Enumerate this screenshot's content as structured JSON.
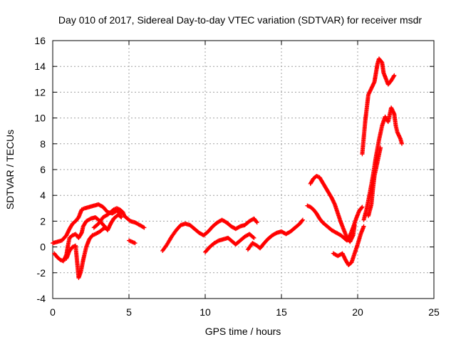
{
  "chart_data": {
    "type": "scatter",
    "title": "Day 010 of 2017, Sidereal Day-to-day VTEC variation (SDTVAR) for receiver msdr",
    "xlabel": "GPS time / hours",
    "ylabel": "SDTVAR / TECUs",
    "xlim": [
      0,
      25
    ],
    "ylim": [
      -4,
      16
    ],
    "xticks": [
      "0",
      "5",
      "10",
      "15",
      "20",
      "25"
    ],
    "yticks": [
      "-4",
      "-2",
      "0",
      "2",
      "4",
      "6",
      "8",
      "10",
      "12",
      "14",
      "16"
    ],
    "grid": true,
    "marker": "+",
    "color": "#ff0000",
    "series": [
      {
        "points": [
          [
            0.0,
            0.3
          ],
          [
            0.3,
            0.4
          ],
          [
            0.6,
            0.5
          ],
          [
            0.9,
            0.9
          ],
          [
            1.1,
            1.4
          ],
          [
            1.3,
            1.8
          ],
          [
            1.5,
            2.0
          ],
          [
            1.7,
            2.3
          ],
          [
            1.8,
            2.6
          ],
          [
            1.9,
            2.9
          ],
          [
            2.1,
            3.0
          ],
          [
            2.4,
            3.1
          ],
          [
            2.7,
            3.2
          ],
          [
            3.0,
            3.3
          ],
          [
            3.3,
            3.1
          ],
          [
            3.6,
            2.7
          ],
          [
            3.9,
            2.6
          ],
          [
            4.2,
            2.8
          ],
          [
            4.5,
            2.6
          ]
        ]
      },
      {
        "points": [
          [
            0.1,
            -0.5
          ],
          [
            0.3,
            -0.8
          ],
          [
            0.5,
            -1.0
          ],
          [
            0.7,
            -1.1
          ],
          [
            0.9,
            -0.6
          ],
          [
            1.0,
            0.1
          ],
          [
            1.1,
            0.7
          ],
          [
            1.3,
            0.9
          ],
          [
            1.5,
            1.0
          ],
          [
            1.7,
            0.7
          ],
          [
            1.9,
            1.1
          ],
          [
            2.0,
            1.6
          ],
          [
            2.2,
            2.0
          ],
          [
            2.5,
            2.2
          ],
          [
            2.8,
            2.3
          ],
          [
            3.1,
            2.0
          ],
          [
            3.4,
            1.6
          ],
          [
            3.6,
            1.3
          ],
          [
            3.8,
            1.8
          ],
          [
            4.0,
            2.2
          ],
          [
            4.3,
            2.5
          ],
          [
            4.5,
            2.3
          ]
        ]
      },
      {
        "points": [
          [
            0.9,
            -0.9
          ],
          [
            1.1,
            -0.3
          ],
          [
            1.3,
            0.0
          ],
          [
            1.5,
            0.1
          ],
          [
            1.7,
            -2.4
          ],
          [
            1.85,
            -1.9
          ],
          [
            2.0,
            -1.0
          ],
          [
            2.2,
            0.0
          ],
          [
            2.4,
            0.6
          ],
          [
            2.6,
            0.9
          ],
          [
            2.8,
            1.0
          ],
          [
            3.1,
            1.2
          ],
          [
            3.3,
            1.4
          ],
          [
            3.5,
            1.5
          ]
        ]
      },
      {
        "points": [
          [
            2.7,
            1.5
          ],
          [
            3.0,
            1.8
          ],
          [
            3.3,
            2.3
          ],
          [
            3.6,
            2.5
          ],
          [
            3.8,
            2.7
          ],
          [
            4.0,
            2.9
          ],
          [
            4.2,
            3.0
          ],
          [
            4.4,
            2.9
          ],
          [
            4.6,
            2.7
          ],
          [
            4.7,
            2.4
          ],
          [
            4.9,
            2.2
          ],
          [
            5.1,
            2.0
          ],
          [
            5.4,
            1.9
          ],
          [
            5.7,
            1.7
          ],
          [
            6.0,
            1.5
          ]
        ]
      },
      {
        "points": [
          [
            5.0,
            0.5
          ],
          [
            5.2,
            0.4
          ],
          [
            5.4,
            0.3
          ]
        ]
      },
      {
        "points": [
          [
            7.2,
            -0.3
          ],
          [
            7.5,
            0.2
          ],
          [
            7.8,
            0.8
          ],
          [
            8.1,
            1.3
          ],
          [
            8.4,
            1.7
          ],
          [
            8.7,
            1.8
          ],
          [
            9.0,
            1.7
          ],
          [
            9.3,
            1.4
          ],
          [
            9.6,
            1.1
          ],
          [
            9.9,
            0.9
          ],
          [
            10.2,
            1.2
          ],
          [
            10.5,
            1.6
          ],
          [
            10.8,
            1.9
          ],
          [
            11.1,
            2.1
          ],
          [
            11.4,
            1.9
          ],
          [
            11.7,
            1.6
          ],
          [
            12.0,
            1.4
          ],
          [
            12.3,
            1.6
          ],
          [
            12.6,
            1.7
          ],
          [
            12.9,
            2.0
          ],
          [
            13.2,
            2.2
          ],
          [
            13.4,
            1.9
          ]
        ]
      },
      {
        "points": [
          [
            10.0,
            -0.4
          ],
          [
            10.3,
            0.0
          ],
          [
            10.6,
            0.3
          ],
          [
            10.9,
            0.5
          ],
          [
            11.2,
            0.6
          ],
          [
            11.5,
            0.7
          ],
          [
            11.8,
            0.4
          ],
          [
            12.0,
            0.2
          ],
          [
            12.3,
            0.5
          ],
          [
            12.6,
            0.8
          ],
          [
            12.9,
            1.0
          ],
          [
            13.2,
            0.7
          ]
        ]
      },
      {
        "points": [
          [
            12.8,
            -0.2
          ],
          [
            13.1,
            0.3
          ],
          [
            13.4,
            0.1
          ],
          [
            13.6,
            -0.1
          ],
          [
            13.8,
            0.2
          ],
          [
            14.1,
            0.6
          ],
          [
            14.4,
            0.9
          ],
          [
            14.7,
            1.1
          ],
          [
            15.0,
            1.2
          ],
          [
            15.3,
            1.0
          ],
          [
            15.6,
            1.2
          ],
          [
            15.9,
            1.5
          ],
          [
            16.2,
            1.8
          ],
          [
            16.4,
            2.1
          ]
        ]
      },
      {
        "points": [
          [
            16.7,
            3.2
          ],
          [
            16.9,
            3.1
          ],
          [
            17.1,
            2.9
          ],
          [
            17.3,
            2.6
          ],
          [
            17.5,
            2.2
          ],
          [
            17.7,
            1.9
          ],
          [
            18.0,
            1.6
          ],
          [
            18.3,
            1.3
          ],
          [
            18.6,
            1.1
          ],
          [
            18.9,
            0.9
          ],
          [
            19.1,
            0.7
          ],
          [
            19.3,
            0.5
          ],
          [
            19.5,
            0.9
          ],
          [
            19.7,
            1.5
          ],
          [
            19.9,
            2.2
          ],
          [
            20.1,
            2.8
          ],
          [
            20.3,
            3.1
          ]
        ]
      },
      {
        "points": [
          [
            16.9,
            4.9
          ],
          [
            17.1,
            5.3
          ],
          [
            17.3,
            5.5
          ],
          [
            17.5,
            5.4
          ],
          [
            17.7,
            5.0
          ],
          [
            17.9,
            4.6
          ],
          [
            18.1,
            4.2
          ],
          [
            18.3,
            3.8
          ],
          [
            18.5,
            3.3
          ],
          [
            18.7,
            2.6
          ],
          [
            18.9,
            1.9
          ],
          [
            19.1,
            1.3
          ],
          [
            19.3,
            0.7
          ],
          [
            19.5,
            0.4
          ],
          [
            19.7,
            0.9
          ],
          [
            19.8,
            1.7
          ]
        ]
      },
      {
        "points": [
          [
            18.4,
            -0.5
          ],
          [
            18.7,
            -0.7
          ],
          [
            19.0,
            -0.5
          ],
          [
            19.2,
            -1.0
          ],
          [
            19.4,
            -1.4
          ],
          [
            19.6,
            -1.2
          ],
          [
            19.8,
            -0.5
          ],
          [
            20.0,
            0.2
          ],
          [
            20.2,
            1.0
          ],
          [
            20.4,
            1.6
          ]
        ]
      },
      {
        "points": [
          [
            20.3,
            7.2
          ],
          [
            20.4,
            8.5
          ],
          [
            20.5,
            9.8
          ],
          [
            20.6,
            10.8
          ],
          [
            20.7,
            11.8
          ],
          [
            20.9,
            12.3
          ],
          [
            21.1,
            12.8
          ],
          [
            21.2,
            13.5
          ],
          [
            21.3,
            14.2
          ],
          [
            21.4,
            14.6
          ],
          [
            21.6,
            14.3
          ],
          [
            21.7,
            13.5
          ],
          [
            21.9,
            12.9
          ],
          [
            22.0,
            12.6
          ],
          [
            22.2,
            12.9
          ],
          [
            22.4,
            13.3
          ]
        ]
      },
      {
        "points": [
          [
            20.4,
            2.1
          ],
          [
            20.6,
            3.0
          ],
          [
            20.8,
            4.2
          ],
          [
            21.0,
            5.5
          ],
          [
            21.2,
            7.0
          ],
          [
            21.4,
            8.3
          ],
          [
            21.6,
            9.4
          ],
          [
            21.8,
            10.1
          ],
          [
            22.0,
            9.7
          ],
          [
            22.2,
            10.8
          ],
          [
            22.4,
            10.3
          ],
          [
            22.5,
            9.4
          ],
          [
            22.6,
            8.9
          ],
          [
            22.8,
            8.4
          ],
          [
            22.9,
            8.0
          ]
        ]
      },
      {
        "points": [
          [
            20.7,
            2.4
          ],
          [
            20.9,
            3.3
          ],
          [
            21.0,
            4.5
          ],
          [
            21.1,
            5.5
          ],
          [
            21.3,
            6.6
          ],
          [
            21.5,
            7.7
          ]
        ]
      }
    ]
  }
}
